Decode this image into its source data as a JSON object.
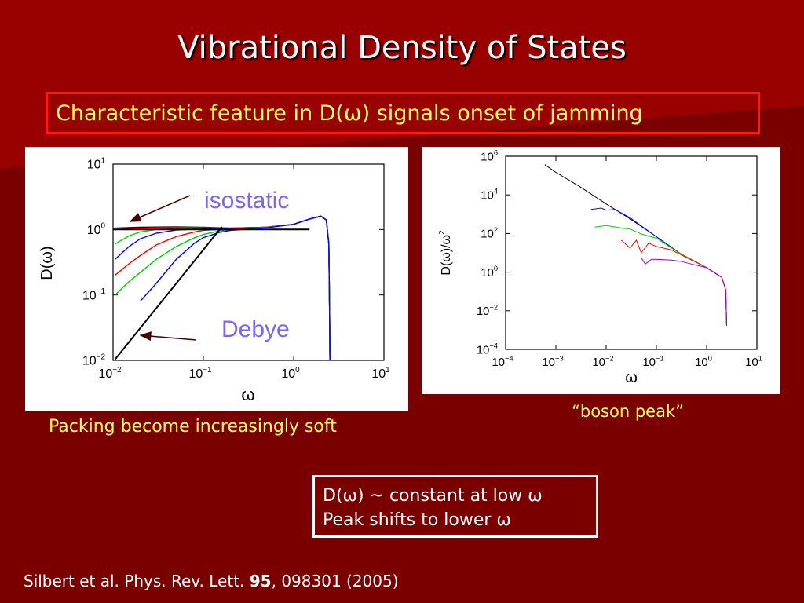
{
  "slide": {
    "title": "Vibrational Density of States",
    "highlight": "Characteristic feature in D(ω) signals onset of jamming",
    "left_caption": "Packing become increasingly soft",
    "right_caption": "“boson peak”",
    "notes": [
      "D(ω) ~ constant at low ω",
      "Peak shifts to lower ω"
    ],
    "reference": {
      "authors": "Silbert et al. Phys. Rev. Lett. ",
      "volume": "95",
      "rest": ", 098301 (2005)"
    }
  },
  "colors": {
    "background": "#7a0000",
    "caption": "#ffff66",
    "annotation": "#7b68ee",
    "arrow": "#4a0000"
  },
  "chart_data": [
    {
      "type": "line",
      "xscale": "log",
      "yscale": "log",
      "xlabel": "ω",
      "ylabel": "D(ω)",
      "xlim": [
        0.01,
        10
      ],
      "ylim": [
        0.01,
        10
      ],
      "xticks": [
        {
          "m": "10",
          "e": "−2"
        },
        {
          "m": "10",
          "e": "−1"
        },
        {
          "m": "10",
          "e": "0"
        },
        {
          "m": "10",
          "e": "1"
        }
      ],
      "yticks": [
        {
          "m": "10",
          "e": "−2"
        },
        {
          "m": "10",
          "e": "−1"
        },
        {
          "m": "10",
          "e": "0"
        },
        {
          "m": "10",
          "e": "1"
        }
      ],
      "annotations": [
        "isostatic",
        "Debye"
      ],
      "series": [
        {
          "color": "#000000",
          "x": [
            0.0105,
            0.02,
            0.05,
            0.1,
            0.2,
            0.5,
            1.0,
            1.5,
            2.0,
            2.3,
            2.45,
            2.5,
            2.52
          ],
          "y": [
            1.05,
            1.08,
            1.1,
            1.08,
            1.05,
            1.08,
            1.2,
            1.45,
            1.6,
            1.4,
            0.6,
            0.05,
            0.01
          ]
        },
        {
          "color": "#ff0000",
          "x": [
            0.0105,
            0.02,
            0.05,
            0.1,
            0.2,
            0.5,
            1.0,
            1.5,
            2.0,
            2.3,
            2.45,
            2.5,
            2.52
          ],
          "y": [
            1.0,
            1.05,
            1.08,
            1.07,
            1.05,
            1.08,
            1.2,
            1.45,
            1.6,
            1.4,
            0.6,
            0.05,
            0.01
          ]
        },
        {
          "color": "#00cc00",
          "x": [
            0.0105,
            0.015,
            0.02,
            0.03,
            0.05,
            0.1,
            0.2,
            0.5,
            1.0,
            1.5,
            2.0,
            2.3,
            2.45,
            2.5,
            2.52
          ],
          "y": [
            0.6,
            0.8,
            0.92,
            1.0,
            1.03,
            1.04,
            1.04,
            1.08,
            1.2,
            1.45,
            1.6,
            1.4,
            0.6,
            0.05,
            0.01
          ]
        },
        {
          "color": "#0000ff",
          "x": [
            0.0105,
            0.015,
            0.02,
            0.03,
            0.05,
            0.1,
            0.2,
            0.5,
            1.0,
            1.5,
            2.0,
            2.3,
            2.45,
            2.5,
            2.52
          ],
          "y": [
            0.35,
            0.55,
            0.72,
            0.88,
            0.98,
            1.03,
            1.04,
            1.08,
            1.2,
            1.45,
            1.6,
            1.4,
            0.6,
            0.05,
            0.01
          ]
        },
        {
          "color": "#ff0000",
          "x": [
            0.0105,
            0.015,
            0.02,
            0.03,
            0.05,
            0.08,
            0.1,
            0.2,
            0.5,
            1.0,
            1.5,
            2.0,
            2.3,
            2.45,
            2.5,
            2.52
          ],
          "y": [
            0.2,
            0.3,
            0.4,
            0.58,
            0.78,
            0.92,
            0.97,
            1.03,
            1.08,
            1.2,
            1.45,
            1.6,
            1.4,
            0.6,
            0.05,
            0.01
          ]
        },
        {
          "color": "#00cc00",
          "x": [
            0.0105,
            0.015,
            0.02,
            0.03,
            0.05,
            0.08,
            0.1,
            0.15,
            0.2,
            0.5,
            1.0,
            1.5,
            2.0,
            2.3,
            2.45,
            2.5,
            2.52
          ],
          "y": [
            0.1,
            0.16,
            0.22,
            0.35,
            0.55,
            0.75,
            0.84,
            0.95,
            1.0,
            1.07,
            1.2,
            1.45,
            1.6,
            1.4,
            0.6,
            0.05,
            0.01
          ]
        },
        {
          "color": "#0000ff",
          "x": [
            0.02,
            0.03,
            0.05,
            0.08,
            0.1,
            0.15,
            0.2,
            0.5,
            1.0,
            1.5,
            2.0,
            2.3,
            2.45,
            2.5,
            2.52
          ],
          "y": [
            0.08,
            0.15,
            0.35,
            0.62,
            0.75,
            0.9,
            0.97,
            1.06,
            1.2,
            1.45,
            1.6,
            1.4,
            0.6,
            0.05,
            0.01
          ]
        }
      ],
      "reference_lines": [
        {
          "name": "isostatic",
          "x": [
            0.01,
            1.5
          ],
          "y": [
            1.0,
            1.0
          ]
        },
        {
          "name": "Debye",
          "x": [
            0.0105,
            0.16
          ],
          "y": [
            0.0103,
            1.1
          ]
        }
      ]
    },
    {
      "type": "line",
      "xscale": "log",
      "yscale": "log",
      "xlabel": "ω",
      "ylabel": "D(ω)/ω",
      "ylabel_sup": "2",
      "xlim": [
        0.0001,
        10
      ],
      "ylim": [
        1e-05,
        10000000
      ],
      "xticks": [
        {
          "m": "10",
          "e": "−4"
        },
        {
          "m": "10",
          "e": "−3"
        },
        {
          "m": "10",
          "e": "−2"
        },
        {
          "m": "10",
          "e": "−1"
        },
        {
          "m": "10",
          "e": "0"
        },
        {
          "m": "10",
          "e": "1"
        }
      ],
      "yticks": [
        {
          "m": "10",
          "e": "−4"
        },
        {
          "m": "10",
          "e": "−2"
        },
        {
          "m": "10",
          "e": "0"
        },
        {
          "m": "10",
          "e": "2"
        },
        {
          "m": "10",
          "e": "4"
        },
        {
          "m": "10",
          "e": "6"
        }
      ],
      "series": [
        {
          "color": "#000000",
          "x": [
            0.0006,
            0.001,
            0.003,
            0.01,
            0.03,
            0.1,
            0.3,
            1.0,
            2.0,
            2.4,
            2.5
          ],
          "y": [
            3000000,
            1000000,
            130000,
            11000,
            1300,
            100,
            9,
            1.2,
            0.3,
            0.05,
            0.0003
          ]
        },
        {
          "color": "#0000ff",
          "x": [
            0.005,
            0.008,
            0.01,
            0.015,
            0.02,
            0.03,
            0.1,
            0.3,
            1.0,
            2.0,
            2.4,
            2.5
          ],
          "y": [
            5000,
            6000,
            4500,
            5000,
            3000,
            1500,
            100,
            9,
            1.2,
            0.3,
            0.05,
            0.0003
          ]
        },
        {
          "color": "#00cc00",
          "x": [
            0.006,
            0.01,
            0.02,
            0.03,
            0.05,
            0.1,
            0.3,
            1.0,
            2.0,
            2.4,
            2.5
          ],
          "y": [
            400,
            500,
            350,
            300,
            150,
            80,
            9,
            1.2,
            0.3,
            0.05,
            0.0003
          ]
        },
        {
          "color": "#ff0000",
          "x": [
            0.02,
            0.03,
            0.04,
            0.05,
            0.07,
            0.1,
            0.2,
            0.3,
            1.0,
            2.0,
            2.4,
            2.5
          ],
          "y": [
            60,
            20,
            60,
            10,
            40,
            25,
            15,
            8,
            1.2,
            0.3,
            0.05,
            0.0003
          ]
        },
        {
          "color": "#9900cc",
          "x": [
            0.05,
            0.06,
            0.08,
            0.1,
            0.2,
            0.3,
            0.5,
            1.0,
            2.0,
            2.4,
            2.5
          ],
          "y": [
            5,
            2,
            4,
            4,
            3.5,
            3,
            2,
            1.2,
            0.3,
            0.05,
            0.0003
          ]
        }
      ]
    }
  ]
}
